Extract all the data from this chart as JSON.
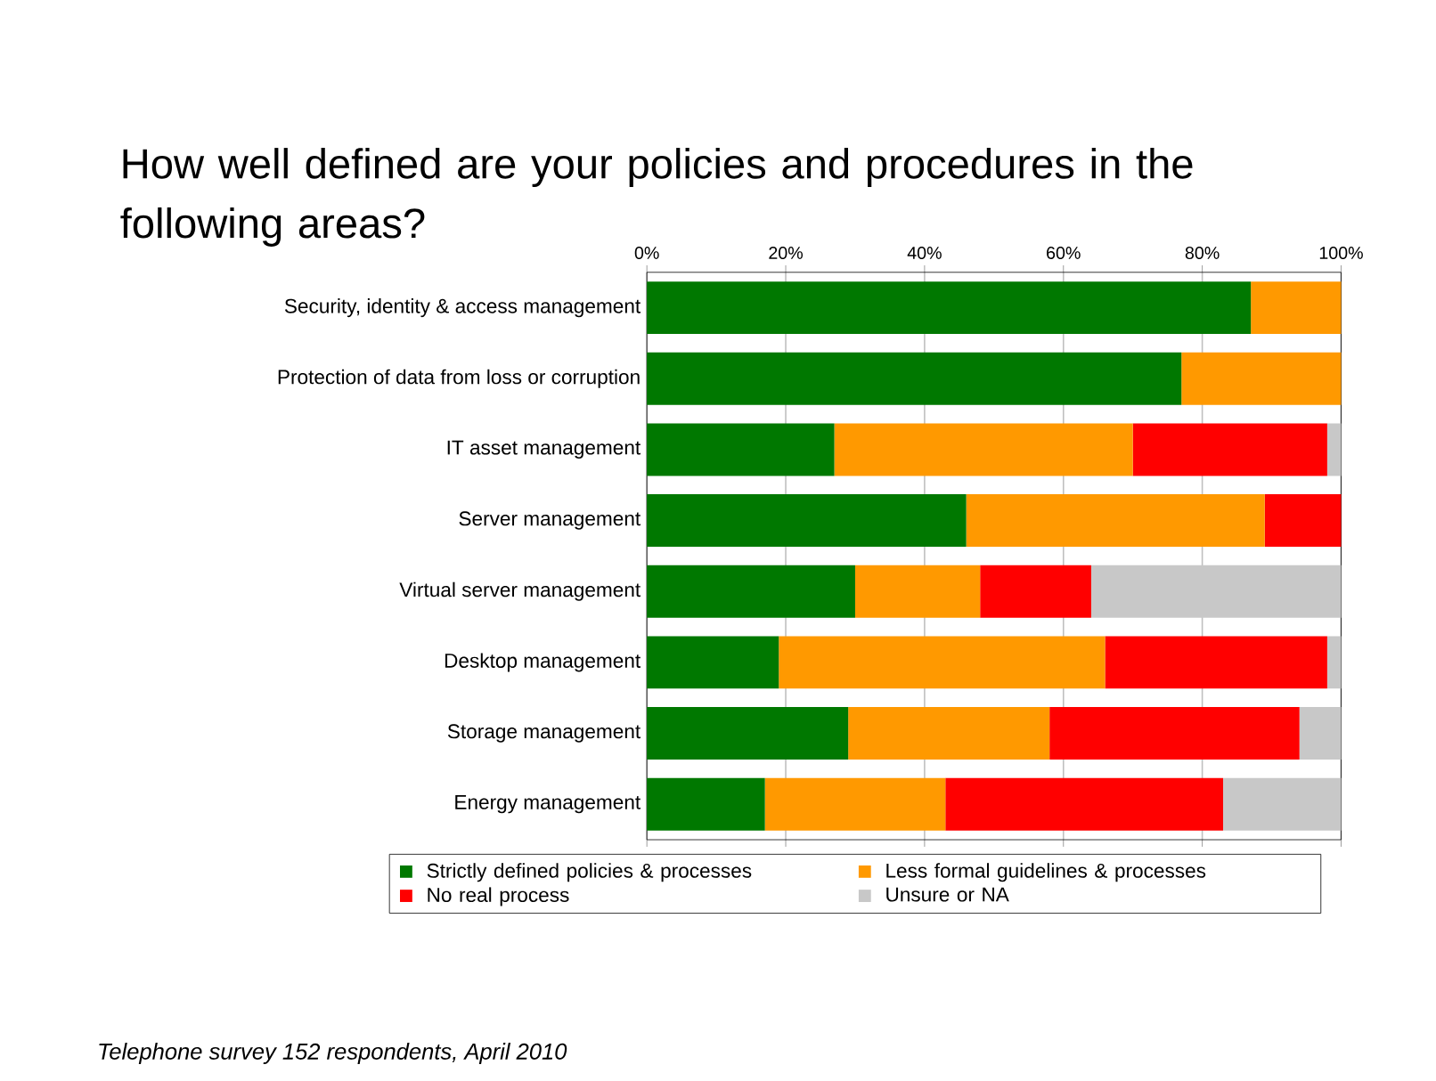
{
  "chart_data": {
    "type": "bar",
    "orientation": "horizontal",
    "stacked": true,
    "title": "How well defined are your policies and procedures in the following areas?",
    "categories": [
      "Security, identity & access management",
      "Protection of data from loss or corruption",
      "IT asset management",
      "Server management",
      "Virtual server management",
      "Desktop management",
      "Storage management",
      "Energy management"
    ],
    "series": [
      {
        "name": "Strictly defined policies & processes",
        "color": "#007800",
        "values": [
          87,
          77,
          27,
          46,
          30,
          19,
          29,
          17
        ]
      },
      {
        "name": "Less formal guidelines & processes",
        "color": "#ff9900",
        "values": [
          13,
          23,
          43,
          43,
          18,
          47,
          29,
          26
        ]
      },
      {
        "name": "No real process",
        "color": "#ff0000",
        "values": [
          null,
          null,
          28,
          11,
          16,
          32,
          36,
          40
        ]
      },
      {
        "name": "Unsure or NA",
        "color": "#c8c8c8",
        "values": [
          null,
          null,
          2,
          null,
          36,
          2,
          6,
          17
        ]
      }
    ],
    "xlim": [
      0,
      100
    ],
    "xticks": [
      {
        "value": 0,
        "label": "0%"
      },
      {
        "value": 20,
        "label": "20%"
      },
      {
        "value": 40,
        "label": "40%"
      },
      {
        "value": 60,
        "label": "60%"
      },
      {
        "value": 80,
        "label": "80%"
      },
      {
        "value": 100,
        "label": "100%"
      }
    ],
    "grid": "x",
    "legend": "bottom",
    "annotations": [
      "Telephone survey 152 respondents, April 2010"
    ]
  }
}
